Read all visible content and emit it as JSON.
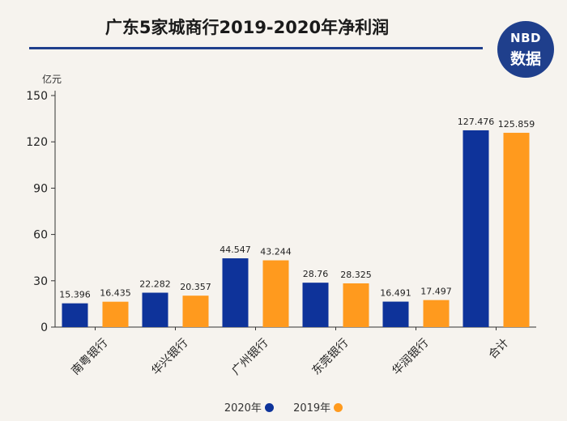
{
  "header": {
    "title": "广东5家城商行2019-2020年净利润",
    "logo_top": "NBD",
    "logo_bottom": "数据",
    "logo_color": "#1f3f8c"
  },
  "chart_data": {
    "type": "bar",
    "title": "广东5家城商行2019-2020年净利润",
    "ylabel": "亿元",
    "xlabel": "",
    "ylim": [
      0,
      150
    ],
    "yticks": [
      0,
      30,
      60,
      90,
      120,
      150
    ],
    "grid": false,
    "legend_position": "bottom",
    "categories": [
      "南粤银行",
      "华兴银行",
      "广州银行",
      "东莞银行",
      "华润银行",
      "合计"
    ],
    "series": [
      {
        "name": "2020年",
        "color": "#0e339a",
        "values": [
          15.396,
          22.282,
          44.547,
          28.76,
          16.491,
          127.476
        ]
      },
      {
        "name": "2019年",
        "color": "#ff9a1e",
        "values": [
          16.435,
          20.357,
          43.244,
          28.325,
          17.497,
          125.859
        ]
      }
    ],
    "data_labels": [
      [
        "15.396",
        "22.282",
        "44.547",
        "28.76",
        "16.491",
        "127.476"
      ],
      [
        "16.435",
        "20.357",
        "43.244",
        "28.325",
        "17.497",
        "125.859"
      ]
    ]
  }
}
